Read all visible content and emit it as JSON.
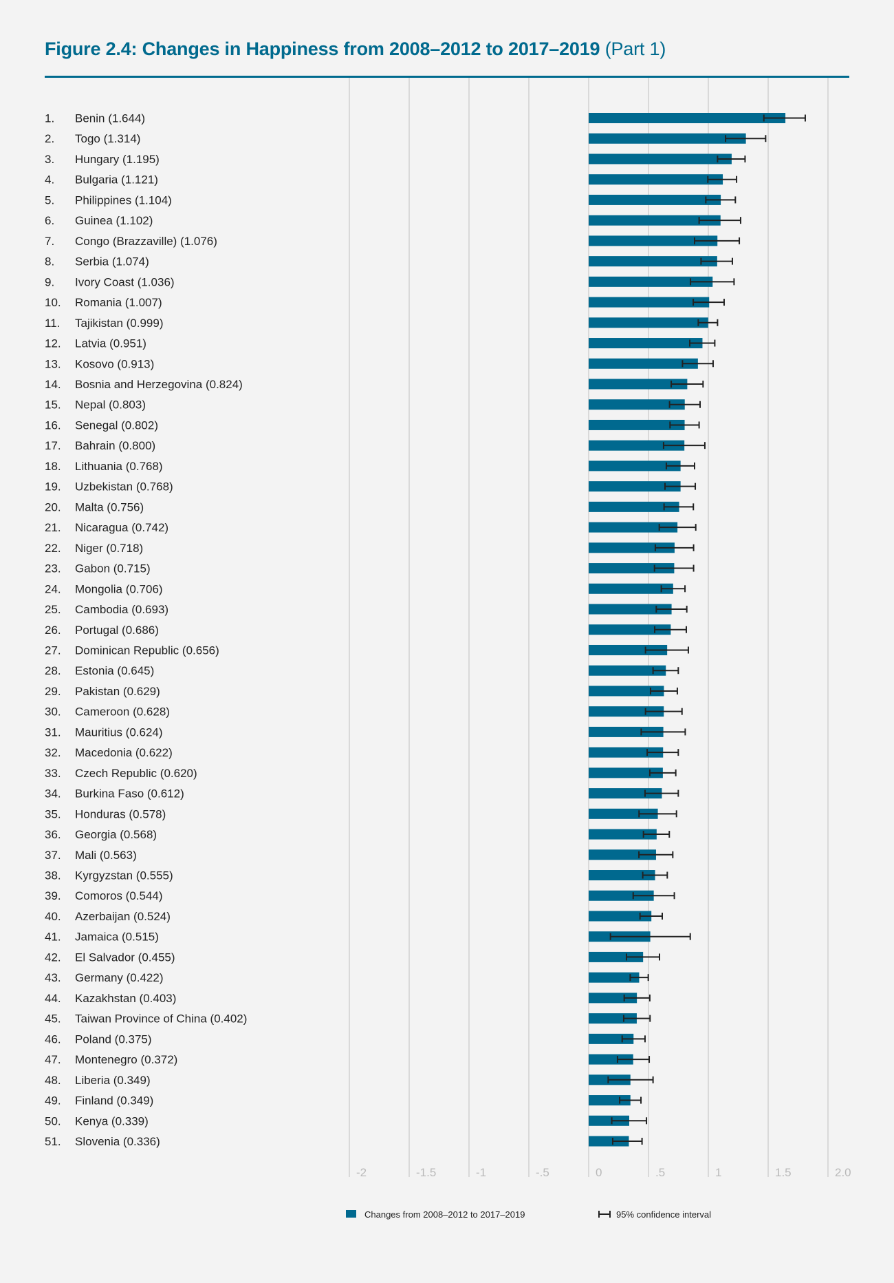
{
  "title": {
    "main": "Figure 2.4: Changes in Happiness from 2008–2012 to 2017–2019",
    "part": "(Part 1)"
  },
  "colors": {
    "bar": "#00698f",
    "title": "#006a8e",
    "grid": "#d9d9d9",
    "error_bar": "#222222"
  },
  "chart_data": {
    "type": "bar",
    "orientation": "horizontal",
    "xlim": [
      -2,
      2
    ],
    "xticks": [
      -2,
      -1.5,
      -1,
      -0.5,
      0,
      0.5,
      1,
      1.5,
      2
    ],
    "xtick_labels": [
      "-2",
      "-1.5",
      "-1",
      "-.5",
      "0",
      ".5",
      "1",
      "1.5",
      "2.0"
    ],
    "grid": true,
    "legend_position": "bottom",
    "legend": {
      "bar": "Changes from 2008–2012 to 2017–2019",
      "ci": "95% confidence interval"
    },
    "rows": [
      {
        "rank": "1.",
        "name": "Benin",
        "value": 1.644,
        "ci": [
          1.464,
          1.81
        ]
      },
      {
        "rank": "2.",
        "name": "Togo",
        "value": 1.314,
        "ci": [
          1.144,
          1.479
        ]
      },
      {
        "rank": "3.",
        "name": "Hungary",
        "value": 1.195,
        "ci": [
          1.077,
          1.307
        ]
      },
      {
        "rank": "4.",
        "name": "Bulgaria",
        "value": 1.121,
        "ci": [
          0.996,
          1.236
        ]
      },
      {
        "rank": "5.",
        "name": "Philippines",
        "value": 1.104,
        "ci": [
          0.979,
          1.226
        ]
      },
      {
        "rank": "6.",
        "name": "Guinea",
        "value": 1.102,
        "ci": [
          0.923,
          1.27
        ]
      },
      {
        "rank": "7.",
        "name": "Congo (Brazzaville)",
        "value": 1.076,
        "ci": [
          0.885,
          1.259
        ]
      },
      {
        "rank": "8.",
        "name": "Serbia",
        "value": 1.074,
        "ci": [
          0.939,
          1.201
        ]
      },
      {
        "rank": "9.",
        "name": "Ivory Coast",
        "value": 1.036,
        "ci": [
          0.851,
          1.215
        ]
      },
      {
        "rank": "10.",
        "name": "Romania",
        "value": 1.007,
        "ci": [
          0.874,
          1.132
        ]
      },
      {
        "rank": "11.",
        "name": "Tajikistan",
        "value": 0.999,
        "ci": [
          0.916,
          1.077
        ]
      },
      {
        "rank": "12.",
        "name": "Latvia",
        "value": 0.951,
        "ci": [
          0.845,
          1.054
        ]
      },
      {
        "rank": "13.",
        "name": "Kosovo",
        "value": 0.913,
        "ci": [
          0.784,
          1.04
        ]
      },
      {
        "rank": "14.",
        "name": "Bosnia and Herzegovina",
        "value": 0.824,
        "ci": [
          0.69,
          0.956
        ]
      },
      {
        "rank": "15.",
        "name": "Nepal",
        "value": 0.803,
        "ci": [
          0.676,
          0.931
        ]
      },
      {
        "rank": "16.",
        "name": "Senegal",
        "value": 0.802,
        "ci": [
          0.68,
          0.923
        ]
      },
      {
        "rank": "17.",
        "name": "Bahrain",
        "value": 0.8,
        "ci": [
          0.626,
          0.971
        ]
      },
      {
        "rank": "18.",
        "name": "Lithuania",
        "value": 0.768,
        "ci": [
          0.649,
          0.885
        ]
      },
      {
        "rank": "19.",
        "name": "Uzbekistan",
        "value": 0.768,
        "ci": [
          0.638,
          0.891
        ]
      },
      {
        "rank": "20.",
        "name": "Malta",
        "value": 0.756,
        "ci": [
          0.63,
          0.875
        ]
      },
      {
        "rank": "21.",
        "name": "Nicaragua",
        "value": 0.742,
        "ci": [
          0.59,
          0.895
        ]
      },
      {
        "rank": "22.",
        "name": "Niger",
        "value": 0.718,
        "ci": [
          0.557,
          0.877
        ]
      },
      {
        "rank": "23.",
        "name": "Gabon",
        "value": 0.715,
        "ci": [
          0.55,
          0.877
        ]
      },
      {
        "rank": "24.",
        "name": "Mongolia",
        "value": 0.706,
        "ci": [
          0.607,
          0.805
        ]
      },
      {
        "rank": "25.",
        "name": "Cambodia",
        "value": 0.693,
        "ci": [
          0.565,
          0.82
        ]
      },
      {
        "rank": "26.",
        "name": "Portugal",
        "value": 0.686,
        "ci": [
          0.552,
          0.816
        ]
      },
      {
        "rank": "27.",
        "name": "Dominican Republic",
        "value": 0.656,
        "ci": [
          0.475,
          0.833
        ]
      },
      {
        "rank": "28.",
        "name": "Estonia",
        "value": 0.645,
        "ci": [
          0.538,
          0.749
        ]
      },
      {
        "rank": "29.",
        "name": "Pakistan",
        "value": 0.629,
        "ci": [
          0.517,
          0.741
        ]
      },
      {
        "rank": "30.",
        "name": "Cameroon",
        "value": 0.628,
        "ci": [
          0.475,
          0.78
        ]
      },
      {
        "rank": "31.",
        "name": "Mauritius",
        "value": 0.624,
        "ci": [
          0.439,
          0.807
        ]
      },
      {
        "rank": "32.",
        "name": "Macedonia",
        "value": 0.622,
        "ci": [
          0.489,
          0.749
        ]
      },
      {
        "rank": "33.",
        "name": "Czech Republic",
        "value": 0.62,
        "ci": [
          0.511,
          0.728
        ]
      },
      {
        "rank": "34.",
        "name": "Burkina Faso",
        "value": 0.612,
        "ci": [
          0.471,
          0.749
        ]
      },
      {
        "rank": "35.",
        "name": "Honduras",
        "value": 0.578,
        "ci": [
          0.421,
          0.734
        ]
      },
      {
        "rank": "36.",
        "name": "Georgia",
        "value": 0.568,
        "ci": [
          0.458,
          0.674
        ]
      },
      {
        "rank": "37.",
        "name": "Mali",
        "value": 0.563,
        "ci": [
          0.42,
          0.703
        ]
      },
      {
        "rank": "38.",
        "name": "Kyrgyzstan",
        "value": 0.555,
        "ci": [
          0.452,
          0.657
        ]
      },
      {
        "rank": "39.",
        "name": "Comoros",
        "value": 0.544,
        "ci": [
          0.372,
          0.716
        ]
      },
      {
        "rank": "40.",
        "name": "Azerbaijan",
        "value": 0.524,
        "ci": [
          0.429,
          0.615
        ]
      },
      {
        "rank": "41.",
        "name": "Jamaica",
        "value": 0.515,
        "ci": [
          0.182,
          0.849
        ]
      },
      {
        "rank": "42.",
        "name": "El Salvador",
        "value": 0.455,
        "ci": [
          0.316,
          0.592
        ]
      },
      {
        "rank": "43.",
        "name": "Germany",
        "value": 0.422,
        "ci": [
          0.347,
          0.498
        ]
      },
      {
        "rank": "44.",
        "name": "Kazakhstan",
        "value": 0.403,
        "ci": [
          0.297,
          0.511
        ]
      },
      {
        "rank": "45.",
        "name": "Taiwan Province of China",
        "value": 0.402,
        "ci": [
          0.293,
          0.513
        ]
      },
      {
        "rank": "46.",
        "name": "Poland",
        "value": 0.375,
        "ci": [
          0.28,
          0.471
        ]
      },
      {
        "rank": "47.",
        "name": "Montenegro",
        "value": 0.372,
        "ci": [
          0.241,
          0.506
        ]
      },
      {
        "rank": "48.",
        "name": "Liberia",
        "value": 0.349,
        "ci": [
          0.163,
          0.538
        ]
      },
      {
        "rank": "49.",
        "name": "Finland",
        "value": 0.349,
        "ci": [
          0.259,
          0.437
        ]
      },
      {
        "rank": "50.",
        "name": "Kenya",
        "value": 0.339,
        "ci": [
          0.193,
          0.483
        ]
      },
      {
        "rank": "51.",
        "name": "Slovenia",
        "value": 0.336,
        "ci": [
          0.201,
          0.446
        ]
      }
    ]
  }
}
